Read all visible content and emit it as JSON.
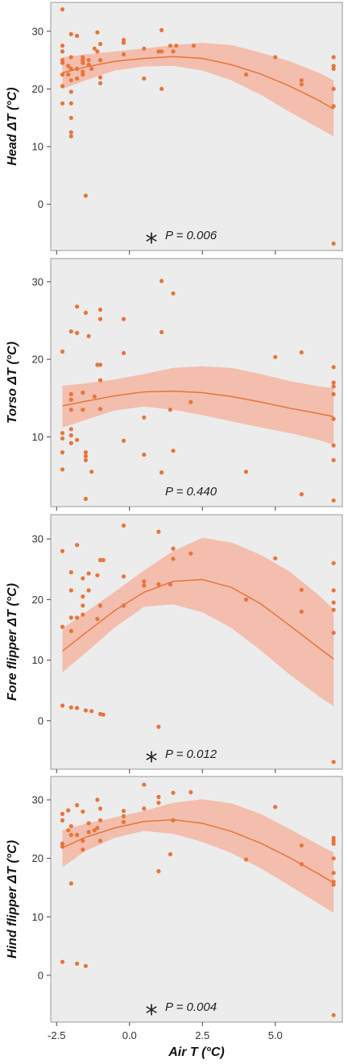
{
  "chart_data": {
    "type": "scatter",
    "xlabel": "Air T (°C)",
    "x_ticks": [
      "-2.5",
      "0.0",
      "2.5",
      "5.0"
    ],
    "x_tick_values": [
      -2.5,
      0.0,
      2.5,
      5.0
    ],
    "xlim": [
      -2.7,
      7.3
    ],
    "colors": {
      "point": "#e8743a",
      "line": "#e8743a",
      "band": "#f4b6a2",
      "panel_bg": "#ececec",
      "border": "#999999"
    },
    "panels": [
      {
        "ylabel": "Head ΔT (°C)",
        "ylim": [
          -8,
          35
        ],
        "y_ticks": [
          "0",
          "10",
          "20",
          "30"
        ],
        "y_tick_values": [
          0,
          10,
          20,
          30
        ],
        "p_text": "P = 0.006",
        "significant": true,
        "significance_mark": "*",
        "points": [
          [
            -2.3,
            33.8
          ],
          [
            -2.3,
            27.5
          ],
          [
            -2.3,
            26.5
          ],
          [
            -2.3,
            25
          ],
          [
            -2.3,
            24.5
          ],
          [
            -2.3,
            22.5
          ],
          [
            -2.3,
            20.5
          ],
          [
            -2.3,
            17.5
          ],
          [
            -2.1,
            24
          ],
          [
            -2.1,
            22.5
          ],
          [
            -2,
            29.5
          ],
          [
            -2,
            25.5
          ],
          [
            -2,
            23.5
          ],
          [
            -2,
            21.5
          ],
          [
            -2,
            19.5
          ],
          [
            -2,
            17.5
          ],
          [
            -2,
            15
          ],
          [
            -2,
            12.5
          ],
          [
            -2,
            11.8
          ],
          [
            -1.8,
            29.2
          ],
          [
            -1.8,
            23.5
          ],
          [
            -1.8,
            21.8
          ],
          [
            -1.6,
            25.5
          ],
          [
            -1.6,
            25
          ],
          [
            -1.6,
            24.5
          ],
          [
            -1.6,
            23
          ],
          [
            -1.6,
            22.5
          ],
          [
            -1.5,
            1.5
          ],
          [
            -1.4,
            25
          ],
          [
            -1.4,
            24.2
          ],
          [
            -1.3,
            23.5
          ],
          [
            -1.2,
            27
          ],
          [
            -1.1,
            29.8
          ],
          [
            -1.1,
            26.5
          ],
          [
            -1,
            27.8
          ],
          [
            -1,
            25
          ],
          [
            -1,
            22
          ],
          [
            -1,
            21
          ],
          [
            -0.2,
            28.5
          ],
          [
            -0.2,
            28
          ],
          [
            -0.2,
            26
          ],
          [
            0.5,
            27
          ],
          [
            0.5,
            21.8
          ],
          [
            1,
            26.5
          ],
          [
            1.1,
            30.2
          ],
          [
            1.1,
            26.5
          ],
          [
            1.1,
            20
          ],
          [
            1.4,
            27.5
          ],
          [
            1.5,
            26.5
          ],
          [
            1.6,
            27.5
          ],
          [
            2.2,
            27.5
          ],
          [
            4,
            22.5
          ],
          [
            5,
            25.5
          ],
          [
            5.9,
            21.5
          ],
          [
            5.9,
            20.8
          ],
          [
            7,
            25.5
          ],
          [
            7,
            24
          ],
          [
            7,
            23.5
          ],
          [
            7,
            20
          ],
          [
            7,
            17
          ],
          [
            7,
            -6.8
          ]
        ],
        "fit": {
          "x": [
            -2.3,
            -1.5,
            -0.5,
            0.5,
            1.5,
            2.5,
            3.5,
            4.5,
            5.5,
            6.5,
            7.0
          ],
          "y": [
            22.8,
            23.8,
            24.8,
            25.3,
            25.6,
            25.3,
            24.2,
            22.6,
            20.5,
            18.0,
            16.5
          ],
          "lower": [
            20.0,
            21.5,
            23.2,
            23.9,
            24.0,
            23.2,
            21.5,
            19.0,
            16.0,
            13.2,
            11.8
          ],
          "upper": [
            25.5,
            26.0,
            26.5,
            27.0,
            27.6,
            28.0,
            27.6,
            26.3,
            24.8,
            22.8,
            21.5
          ]
        }
      },
      {
        "ylabel": "Torso ΔT (°C)",
        "ylim": [
          1,
          33
        ],
        "y_ticks": [
          "10",
          "20",
          "30"
        ],
        "y_tick_values": [
          10,
          20,
          30
        ],
        "p_text": "P = 0.440",
        "significant": false,
        "significance_mark": "",
        "points": [
          [
            -2.3,
            21
          ],
          [
            -2.3,
            10.5
          ],
          [
            -2.3,
            9.8
          ],
          [
            -2.3,
            8
          ],
          [
            -2.3,
            5.8
          ],
          [
            -2,
            23.6
          ],
          [
            -2,
            15.5
          ],
          [
            -2,
            14.8
          ],
          [
            -2,
            13.5
          ],
          [
            -2,
            11
          ],
          [
            -2,
            10.2
          ],
          [
            -2,
            9.2
          ],
          [
            -1.8,
            26.8
          ],
          [
            -1.8,
            23.4
          ],
          [
            -1.8,
            9.6
          ],
          [
            -1.6,
            15.7
          ],
          [
            -1.6,
            13.5
          ],
          [
            -1.5,
            26
          ],
          [
            -1.5,
            8
          ],
          [
            -1.5,
            7.5
          ],
          [
            -1.5,
            7
          ],
          [
            -1.5,
            2
          ],
          [
            -1.4,
            23
          ],
          [
            -1.3,
            5.5
          ],
          [
            -1.2,
            15.2
          ],
          [
            -1.1,
            19.3
          ],
          [
            -1,
            26.4
          ],
          [
            -1,
            25.2
          ],
          [
            -1,
            19.3
          ],
          [
            -1,
            17.3
          ],
          [
            -1,
            13.6
          ],
          [
            -0.2,
            25.2
          ],
          [
            -0.2,
            20.8
          ],
          [
            -0.2,
            9.5
          ],
          [
            0.5,
            12.5
          ],
          [
            0.5,
            7.7
          ],
          [
            1.1,
            30.1
          ],
          [
            1.1,
            23.5
          ],
          [
            1.1,
            5.4
          ],
          [
            1.4,
            13.5
          ],
          [
            1.5,
            28.5
          ],
          [
            1.5,
            8.2
          ],
          [
            2.1,
            14.5
          ],
          [
            4,
            5.5
          ],
          [
            5,
            20.3
          ],
          [
            5.9,
            20.9
          ],
          [
            5.9,
            2.6
          ],
          [
            7,
            19
          ],
          [
            7,
            17
          ],
          [
            7,
            16.5
          ],
          [
            7,
            15.5
          ],
          [
            7,
            12.3
          ],
          [
            7,
            8.9
          ],
          [
            7,
            7
          ],
          [
            7,
            1.8
          ]
        ],
        "fit": {
          "x": [
            -2.3,
            -1.5,
            -0.5,
            0.5,
            1.5,
            2.5,
            3.5,
            4.5,
            5.5,
            6.5,
            7.0
          ],
          "y": [
            14.0,
            14.6,
            15.3,
            15.8,
            15.9,
            15.7,
            15.2,
            14.5,
            13.7,
            13.0,
            12.6
          ],
          "lower": [
            11.2,
            12.2,
            13.4,
            13.9,
            13.5,
            12.8,
            12.0,
            11.2,
            10.5,
            9.6,
            9.0
          ],
          "upper": [
            16.6,
            16.9,
            17.4,
            18.1,
            18.9,
            19.1,
            18.9,
            18.1,
            17.2,
            16.5,
            16.3
          ]
        }
      },
      {
        "ylabel": "Fore flipper ΔT (°C)",
        "ylim": [
          -8,
          34
        ],
        "y_ticks": [
          "0",
          "10",
          "20",
          "30"
        ],
        "y_tick_values": [
          0,
          10,
          20,
          30
        ],
        "p_text": "P = 0.012",
        "significant": true,
        "significance_mark": "*",
        "points": [
          [
            -2.3,
            28
          ],
          [
            -2.3,
            15.5
          ],
          [
            -2.3,
            2.5
          ],
          [
            -2,
            24.5
          ],
          [
            -2,
            21.5
          ],
          [
            -2,
            17
          ],
          [
            -2,
            14.8
          ],
          [
            -2,
            2.2
          ],
          [
            -1.8,
            29
          ],
          [
            -1.8,
            17
          ],
          [
            -1.8,
            2.1
          ],
          [
            -1.6,
            23.5
          ],
          [
            -1.6,
            20.5
          ],
          [
            -1.6,
            19
          ],
          [
            -1.6,
            17.5
          ],
          [
            -1.5,
            1.7
          ],
          [
            -1.4,
            24.3
          ],
          [
            -1.4,
            21.5
          ],
          [
            -1.3,
            1.6
          ],
          [
            -1.1,
            24
          ],
          [
            -1.1,
            16.8
          ],
          [
            -1,
            26.5
          ],
          [
            -1,
            19
          ],
          [
            -1,
            1.1
          ],
          [
            -0.9,
            26.5
          ],
          [
            -0.9,
            1
          ],
          [
            -0.2,
            32.2
          ],
          [
            -0.2,
            23.8
          ],
          [
            -0.2,
            19
          ],
          [
            0.5,
            23
          ],
          [
            0.5,
            22.3
          ],
          [
            1,
            31.2
          ],
          [
            1,
            22.5
          ],
          [
            1,
            -1
          ],
          [
            1.4,
            22.5
          ],
          [
            1.5,
            28.4
          ],
          [
            1.5,
            26.7
          ],
          [
            2.1,
            27.6
          ],
          [
            4,
            20
          ],
          [
            5,
            26.8
          ],
          [
            5.9,
            21.6
          ],
          [
            5.9,
            18
          ],
          [
            7,
            26
          ],
          [
            7,
            21.5
          ],
          [
            7,
            19.5
          ],
          [
            7,
            18.3
          ],
          [
            7,
            14.5
          ],
          [
            7,
            -6.8
          ]
        ],
        "fit": {
          "x": [
            -2.3,
            -1.5,
            -0.5,
            0.5,
            1.5,
            2.5,
            3.5,
            4.5,
            5.5,
            6.5,
            7.0
          ],
          "y": [
            11.5,
            14.5,
            18.2,
            21.2,
            23.0,
            23.3,
            22.0,
            19.3,
            15.7,
            12.0,
            10.2
          ],
          "lower": [
            8.0,
            11.2,
            15.4,
            18.8,
            19.2,
            17.9,
            15.3,
            11.6,
            7.6,
            4.0,
            2.4
          ],
          "upper": [
            15.2,
            17.9,
            21.3,
            24.8,
            28.0,
            30.2,
            29.4,
            27.4,
            24.6,
            20.7,
            18.4
          ]
        }
      },
      {
        "ylabel": "Hind flipper ΔT (°C)",
        "ylim": [
          -8,
          34
        ],
        "y_ticks": [
          "0",
          "10",
          "20",
          "30"
        ],
        "y_tick_values": [
          0,
          10,
          20,
          30
        ],
        "p_text": "P = 0.004",
        "significant": true,
        "significance_mark": "*",
        "points": [
          [
            -2.3,
            27.6
          ],
          [
            -2.3,
            26.5
          ],
          [
            -2.3,
            22.5
          ],
          [
            -2.3,
            22
          ],
          [
            -2.3,
            2.3
          ],
          [
            -2.1,
            28.2
          ],
          [
            -2.1,
            24.8
          ],
          [
            -2,
            25.5
          ],
          [
            -2,
            24
          ],
          [
            -2,
            15.7
          ],
          [
            -1.8,
            29.1
          ],
          [
            -1.8,
            24
          ],
          [
            -1.8,
            2
          ],
          [
            -1.6,
            28
          ],
          [
            -1.6,
            23
          ],
          [
            -1.6,
            21.5
          ],
          [
            -1.5,
            1.6
          ],
          [
            -1.4,
            26
          ],
          [
            -1.4,
            24.5
          ],
          [
            -1.2,
            24.8
          ],
          [
            -1.1,
            30
          ],
          [
            -1.1,
            25.2
          ],
          [
            -1,
            28.5
          ],
          [
            -1,
            26.5
          ],
          [
            -1,
            23
          ],
          [
            -0.2,
            28.1
          ],
          [
            -0.2,
            27.2
          ],
          [
            -0.2,
            26.2
          ],
          [
            0.5,
            32.6
          ],
          [
            0.5,
            28.5
          ],
          [
            1,
            30.5
          ],
          [
            1,
            29.5
          ],
          [
            1,
            17.8
          ],
          [
            1.4,
            20.7
          ],
          [
            1.5,
            31.2
          ],
          [
            1.5,
            26.5
          ],
          [
            2.1,
            31.3
          ],
          [
            4,
            19.8
          ],
          [
            5,
            28.8
          ],
          [
            5.9,
            22.2
          ],
          [
            5.9,
            19
          ],
          [
            7,
            23.5
          ],
          [
            7,
            23
          ],
          [
            7,
            22.5
          ],
          [
            7,
            20
          ],
          [
            7,
            17.5
          ],
          [
            7,
            16
          ],
          [
            7,
            15.5
          ],
          [
            7,
            -6.8
          ]
        ],
        "fit": {
          "x": [
            -2.3,
            -1.5,
            -0.5,
            0.5,
            1.5,
            2.5,
            3.5,
            4.5,
            5.5,
            6.5,
            7.0
          ],
          "y": [
            21.8,
            23.6,
            25.2,
            26.3,
            26.6,
            26.0,
            24.6,
            22.6,
            20.1,
            17.3,
            15.8
          ],
          "lower": [
            18.5,
            21.3,
            23.5,
            24.7,
            24.2,
            22.8,
            20.9,
            18.3,
            15.3,
            12.2,
            10.7
          ],
          "upper": [
            24.8,
            25.9,
            27.0,
            28.1,
            29.5,
            30.1,
            29.4,
            27.6,
            25.0,
            22.3,
            21.0
          ]
        }
      }
    ]
  }
}
